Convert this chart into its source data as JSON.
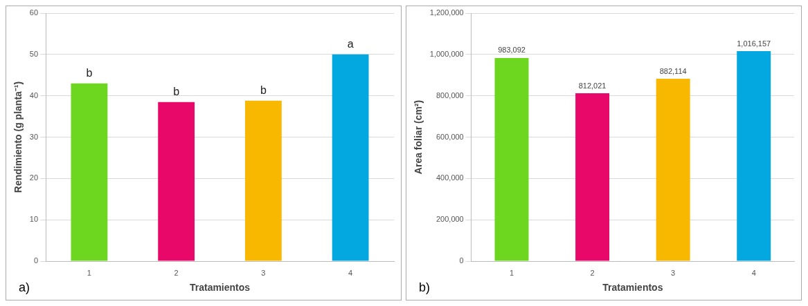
{
  "chart_data": [
    {
      "type": "bar",
      "categories": [
        "1",
        "2",
        "3",
        "4"
      ],
      "xlabel": "Tratamientos",
      "ylabel": "Rendimiento (g planta⁻¹)",
      "ylim": [
        0,
        60
      ],
      "yticks": [
        0,
        10,
        20,
        30,
        40,
        50,
        60
      ],
      "grid": "y",
      "legend": false,
      "colors": [
        "#6dd61e",
        "#e8086a",
        "#f8b800",
        "#04a8e0"
      ],
      "values": [
        43.0,
        38.5,
        38.8,
        50.0
      ],
      "annotations": [
        {
          "text": "b",
          "x": "1",
          "y": 43.0
        },
        {
          "text": "b",
          "x": "2",
          "y": 38.5
        },
        {
          "text": "b",
          "x": "3",
          "y": 38.8
        },
        {
          "text": "a",
          "x": "4",
          "y": 50.0
        },
        "a)"
      ]
    },
    {
      "type": "bar",
      "categories": [
        "1",
        "2",
        "3",
        "4"
      ],
      "xlabel": "Tratamientos",
      "ylabel": "Area foliar (cm²)",
      "ylim": [
        0,
        1200000
      ],
      "yticks": [
        0,
        {
          "value": 200000,
          "label": "200,000"
        },
        {
          "value": 400000,
          "label": "400,000"
        },
        {
          "value": 600000,
          "label": "600,000"
        },
        {
          "value": 800000,
          "label": "800,000"
        },
        {
          "value": 1000000,
          "label": "1,000,000"
        },
        {
          "value": 1200000,
          "label": "1,200,000"
        }
      ],
      "grid": "y",
      "legend": false,
      "colors": [
        "#6dd61e",
        "#e8086a",
        "#f8b800",
        "#04a8e0"
      ],
      "values": [
        983092,
        812021,
        882114,
        1016157
      ],
      "value_labels": [
        "983,092",
        "812,021",
        "882,114",
        "1,016,157"
      ],
      "annotations": [
        "b)"
      ]
    }
  ]
}
